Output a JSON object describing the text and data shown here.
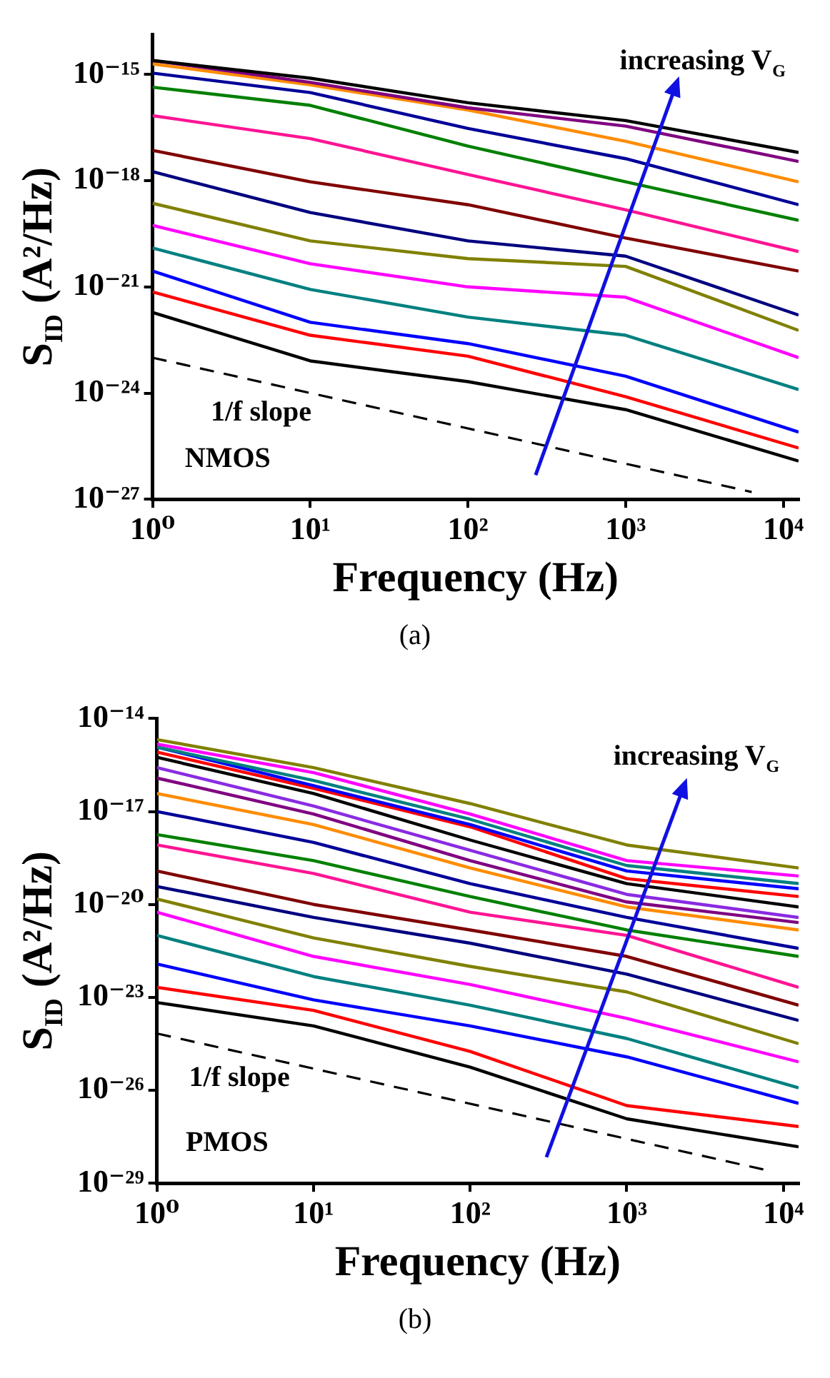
{
  "chart_data": [
    {
      "type": "line",
      "xlabel": "Frequency (Hz)",
      "ylabel": "S$_{ID}$ (A²/Hz)",
      "log": "xy",
      "grid": false,
      "marker": "none",
      "annotations": [
        "increasing V$_{G}$",
        "1/f slope",
        "NMOS",
        "(a)"
      ],
      "xlim": [
        1,
        12500
      ],
      "ylim": [
        1e-27,
        1.35e-14
      ],
      "xticks": [
        {
          "value": 1,
          "label": "10⁰"
        },
        {
          "value": 10,
          "label": "10¹"
        },
        {
          "value": 100,
          "label": "10²"
        },
        {
          "value": 1000,
          "label": "10³"
        },
        {
          "value": 10000,
          "label": "10⁴"
        }
      ],
      "yticks": [
        {
          "value": 1e-27,
          "label": "10⁻²⁷"
        },
        {
          "value": 1e-24,
          "label": "10⁻²⁴"
        },
        {
          "value": 1e-21,
          "label": "10⁻²¹"
        },
        {
          "value": 1e-18,
          "label": "10⁻¹⁸"
        },
        {
          "value": 1e-15,
          "label": "10⁻¹⁵"
        }
      ],
      "x": [
        1,
        10,
        100,
        1000,
        12500
      ],
      "series": [
        {
          "color": "#000000",
          "values": [
            2.5e-15,
            7.9e-16,
            1.6e-16,
            5e-17,
            6.3e-18
          ]
        },
        {
          "color": "#800080",
          "values": [
            2.5e-15,
            6e-16,
            1.15e-16,
            3.5e-17,
            3.5e-18
          ]
        },
        {
          "color": "#ff8c00",
          "values": [
            2e-15,
            5.1e-16,
            1e-16,
            1.3e-17,
            9.3e-19
          ]
        },
        {
          "color": "#000099",
          "values": [
            1.1e-15,
            3.1e-16,
            3e-17,
            4.2e-18,
            2.1e-19
          ]
        },
        {
          "color": "#008000",
          "values": [
            4.4e-16,
            1.35e-16,
            9.5e-18,
            9.3e-19,
            7.6e-20
          ]
        },
        {
          "color": "#ff1493",
          "values": [
            6.9e-17,
            1.55e-17,
            1.5e-18,
            1.5e-19,
            1e-20
          ]
        },
        {
          "color": "#800000",
          "values": [
            7.2e-18,
            9.3e-19,
            2.1e-19,
            2.4e-20,
            2.8e-21
          ]
        },
        {
          "color": "#000080",
          "values": [
            1.8e-18,
            1.26e-19,
            2e-20,
            7.4e-21,
            1.6e-22
          ]
        },
        {
          "color": "#808000",
          "values": [
            2.3e-19,
            2e-20,
            6.3e-21,
            3.8e-21,
            5.9e-23
          ]
        },
        {
          "color": "#ff00ff",
          "values": [
            5.5e-20,
            4.5e-21,
            1e-21,
            5.1e-22,
            1e-23
          ]
        },
        {
          "color": "#008080",
          "values": [
            1.26e-20,
            8.5e-22,
            1.4e-22,
            4.3e-23,
            1.26e-24
          ]
        },
        {
          "color": "#0000ff",
          "values": [
            2.8e-21,
            1e-22,
            2.5e-23,
            3e-24,
            7.9e-26
          ]
        },
        {
          "color": "#ff0000",
          "values": [
            7.2e-22,
            4.3e-23,
            1.1e-23,
            7.9e-25,
            2.8e-26
          ]
        },
        {
          "color": "#000000",
          "values": [
            1.9e-22,
            8.1e-24,
            2.1e-24,
            3.4e-25,
            1.2e-26
          ]
        },
        {
          "type": "line",
          "color": "#000000",
          "line_style": "dashed",
          "x": [
            1,
            6300
          ],
          "values": [
            1e-23,
            1.6e-27
          ]
        }
      ]
    },
    {
      "type": "line",
      "xlabel": "Frequency (Hz)",
      "ylabel": "S$_{ID}$ (A²/Hz)",
      "log": "xy",
      "grid": false,
      "marker": "none",
      "annotations": [
        "increasing V$_{G}$",
        "1/f slope",
        "PMOS",
        "(b)"
      ],
      "xlim": [
        1,
        12500
      ],
      "ylim": [
        1e-29,
        1e-14
      ],
      "xticks": [
        {
          "value": 1,
          "label": "10⁰"
        },
        {
          "value": 10,
          "label": "10¹"
        },
        {
          "value": 100,
          "label": "10²"
        },
        {
          "value": 1000,
          "label": "10³"
        },
        {
          "value": 10000,
          "label": "10⁴"
        }
      ],
      "yticks": [
        {
          "value": 1e-29,
          "label": "10⁻²⁹"
        },
        {
          "value": 1e-26,
          "label": "10⁻²⁶"
        },
        {
          "value": 1e-23,
          "label": "10⁻²³"
        },
        {
          "value": 1e-20,
          "label": "10⁻²⁰"
        },
        {
          "value": 1e-17,
          "label": "10⁻¹⁷"
        },
        {
          "value": 1e-14,
          "label": "10⁻¹⁴"
        }
      ],
      "x": [
        1,
        10,
        100,
        1000,
        12500
      ],
      "series": [
        {
          "color": "#808000",
          "values": [
            2.1e-15,
            2.6e-16,
            1.8e-17,
            8.3e-19,
            1.5e-19
          ]
        },
        {
          "color": "#ff00ff",
          "values": [
            1.5e-15,
            1.8e-16,
            8.3e-18,
            2.6e-19,
            8.3e-20
          ]
        },
        {
          "color": "#008080",
          "values": [
            1.2e-15,
            1e-16,
            5.6e-18,
            1.8e-19,
            4.7e-20
          ]
        },
        {
          "color": "#0000ff",
          "values": [
            1.2e-15,
            6.8e-17,
            3.8e-18,
            1.2e-19,
            3.2e-20
          ]
        },
        {
          "color": "#ff0000",
          "values": [
            8.3e-16,
            5.6e-17,
            3.2e-18,
            6.8e-20,
            1.8e-20
          ]
        },
        {
          "color": "#000000",
          "values": [
            5.6e-16,
            3.8e-17,
            1.2e-18,
            4.7e-20,
            8.3e-21
          ]
        },
        {
          "color": "#8a2be2",
          "values": [
            2.6e-16,
            1.5e-17,
            5.6e-19,
            2.1e-20,
            3.8e-21
          ]
        },
        {
          "color": "#800080",
          "values": [
            1.2e-16,
            8.3e-18,
            2.6e-19,
            1.2e-20,
            2.6e-21
          ]
        },
        {
          "color": "#ff8c00",
          "values": [
            3.8e-17,
            3.8e-18,
            1.5e-19,
            8.3e-21,
            1.5e-21
          ]
        },
        {
          "color": "#000099",
          "values": [
            1e-17,
            1e-18,
            4.7e-20,
            3.8e-21,
            3.8e-22
          ]
        },
        {
          "color": "#008000",
          "values": [
            1.8e-18,
            2.6e-19,
            1.8e-20,
            1.5e-21,
            2.1e-22
          ]
        },
        {
          "color": "#ff1493",
          "values": [
            8.3e-19,
            1e-19,
            5.6e-21,
            1e-21,
            2.1e-23
          ]
        },
        {
          "color": "#800000",
          "values": [
            1.2e-19,
            1e-20,
            1.5e-21,
            2.1e-22,
            5.6e-24
          ]
        },
        {
          "color": "#000080",
          "values": [
            3.8e-20,
            3.8e-21,
            5.6e-22,
            5.6e-23,
            1.8e-24
          ]
        },
        {
          "color": "#808000",
          "values": [
            1.5e-20,
            8.3e-22,
            1e-22,
            1.5e-23,
            3.2e-25
          ]
        },
        {
          "color": "#ff00ff",
          "values": [
            5.6e-21,
            2.1e-22,
            2.6e-23,
            2.1e-24,
            8.3e-26
          ]
        },
        {
          "color": "#008080",
          "values": [
            1e-21,
            4.7e-23,
            5.6e-24,
            4.7e-25,
            1.2e-26
          ]
        },
        {
          "color": "#0000ff",
          "values": [
            1.2e-22,
            8.3e-24,
            1.2e-24,
            1.2e-25,
            3.8e-27
          ]
        },
        {
          "color": "#ff0000",
          "values": [
            2.1e-23,
            3.8e-24,
            1.8e-25,
            3.2e-27,
            6.8e-28
          ]
        },
        {
          "color": "#000000",
          "values": [
            6.8e-24,
            1.2e-24,
            5.6e-26,
            1.2e-27,
            1.5e-28
          ]
        },
        {
          "type": "line",
          "color": "#000000",
          "line_style": "dashed",
          "x": [
            1,
            7900
          ],
          "values": [
            6.8e-25,
            2.6e-29
          ]
        }
      ]
    }
  ]
}
